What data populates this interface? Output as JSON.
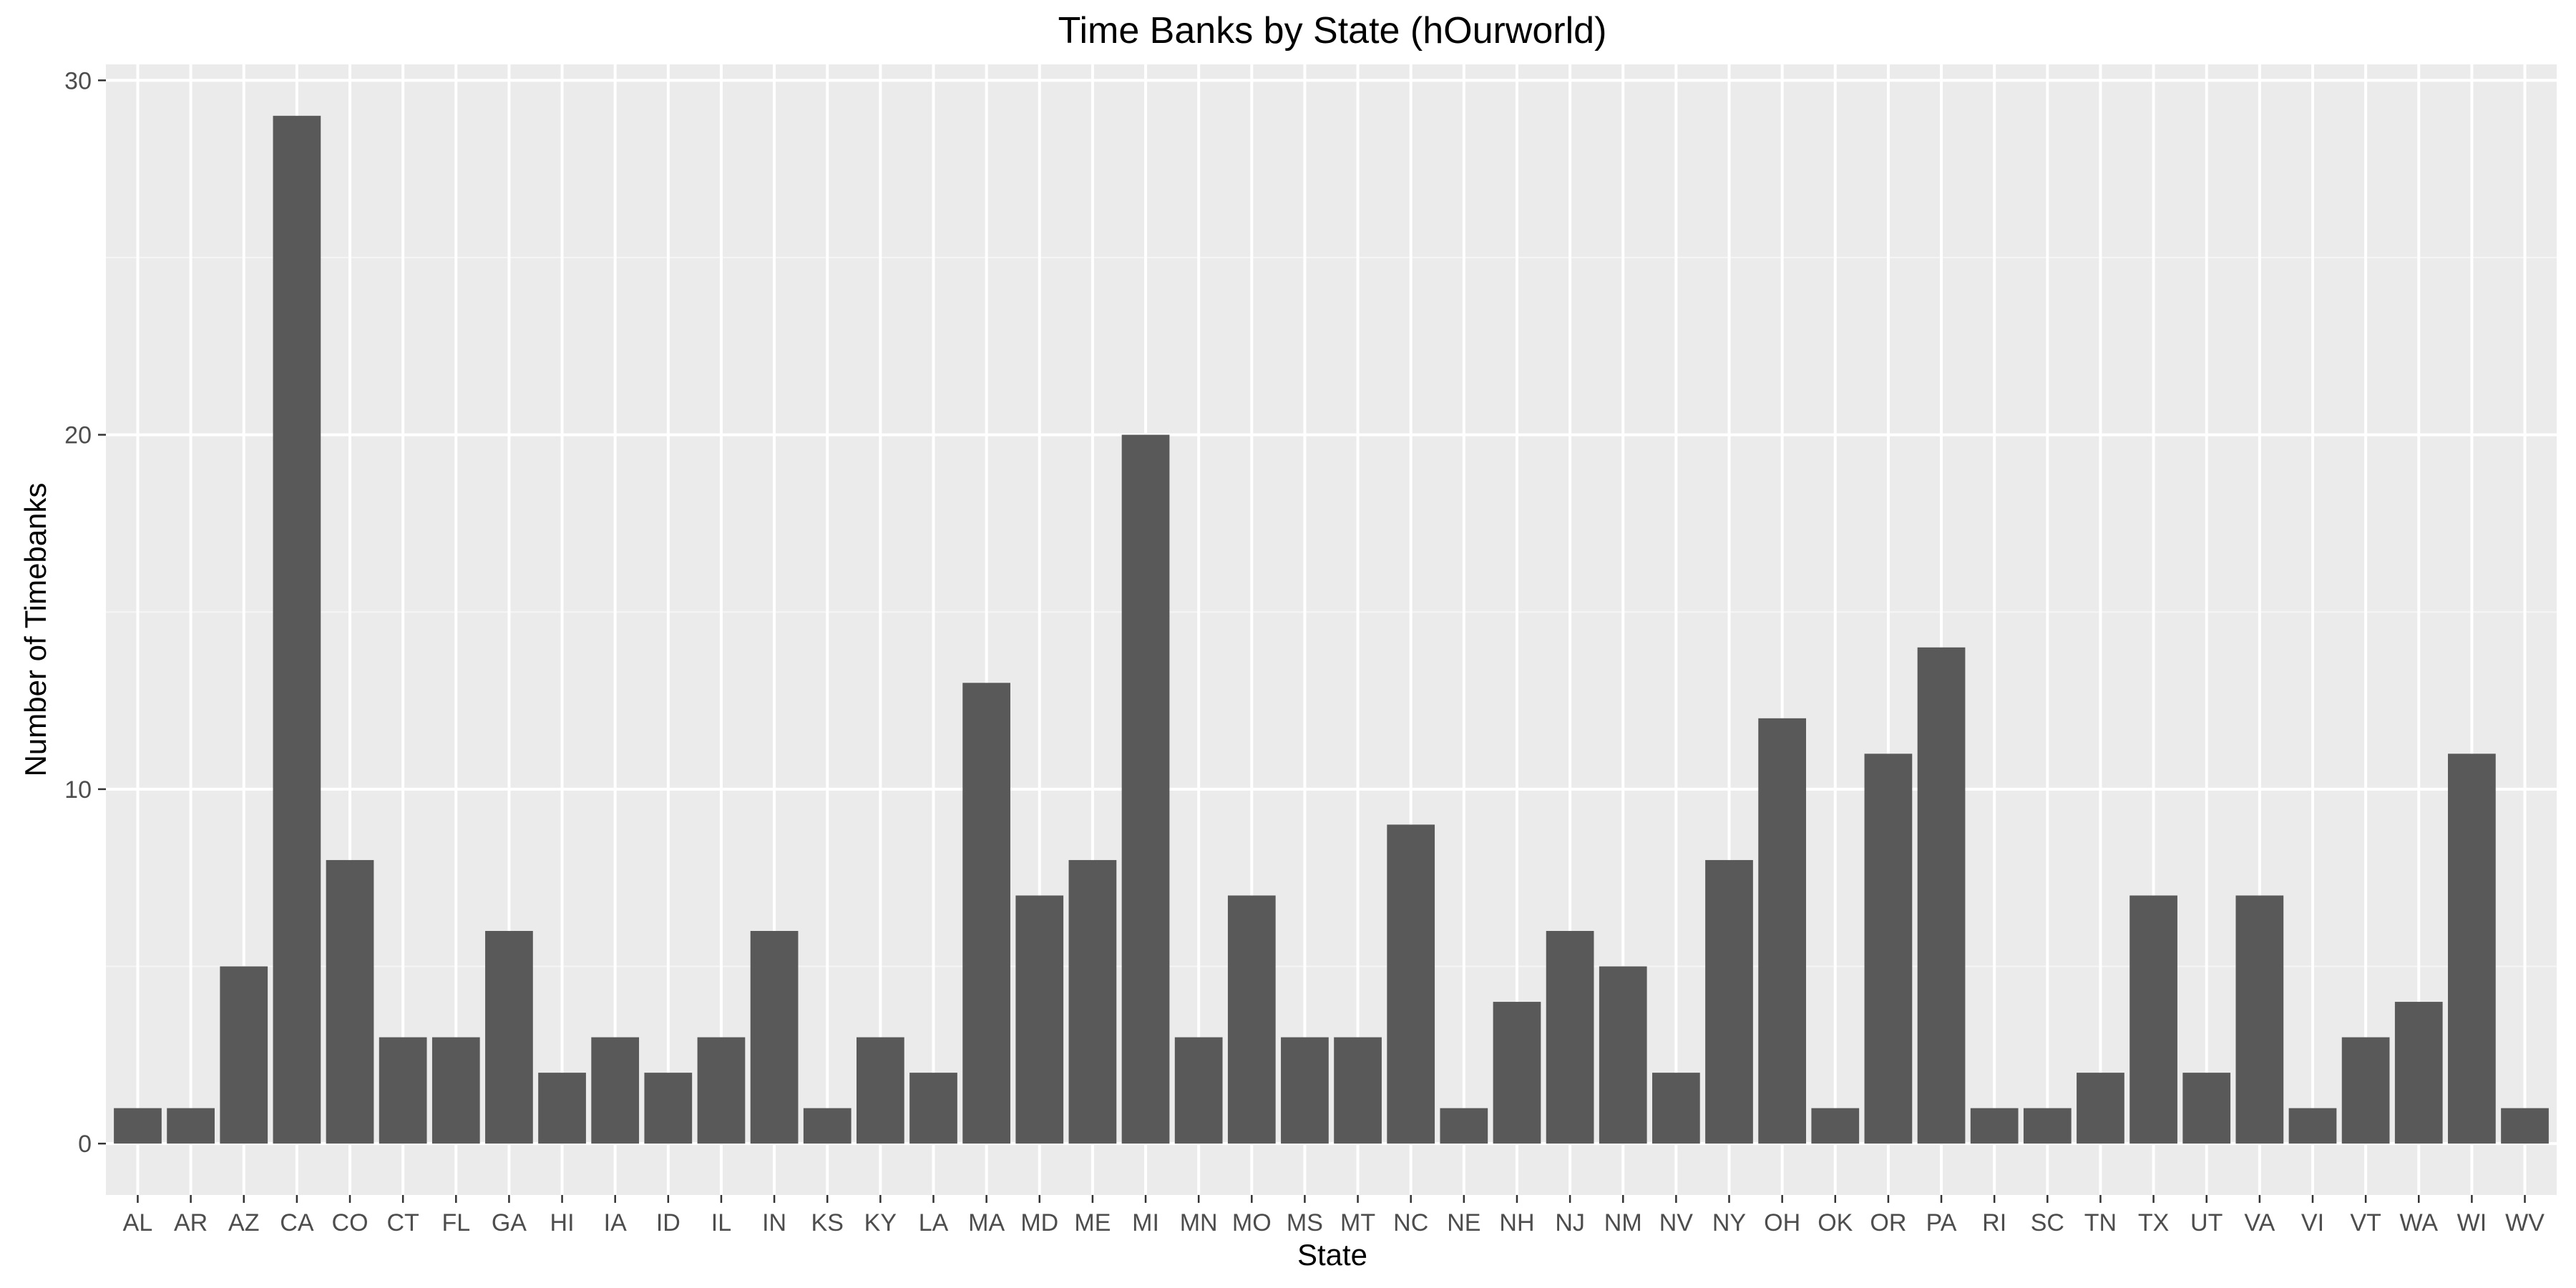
{
  "chart_data": {
    "type": "bar",
    "title": "Time Banks by State (hOurworld)",
    "xlabel": "State",
    "ylabel": "Number of Timebanks",
    "categories": [
      "AL",
      "AR",
      "AZ",
      "CA",
      "CO",
      "CT",
      "FL",
      "GA",
      "HI",
      "IA",
      "ID",
      "IL",
      "IN",
      "KS",
      "KY",
      "LA",
      "MA",
      "MD",
      "ME",
      "MI",
      "MN",
      "MO",
      "MS",
      "MT",
      "NC",
      "NE",
      "NH",
      "NJ",
      "NM",
      "NV",
      "NY",
      "OH",
      "OK",
      "OR",
      "PA",
      "RI",
      "SC",
      "TN",
      "TX",
      "UT",
      "VA",
      "VI",
      "VT",
      "WA",
      "WI",
      "WV"
    ],
    "values": [
      1,
      1,
      5,
      29,
      8,
      3,
      3,
      6,
      2,
      3,
      2,
      3,
      6,
      1,
      3,
      2,
      13,
      7,
      8,
      20,
      3,
      7,
      3,
      3,
      9,
      1,
      4,
      6,
      5,
      2,
      8,
      12,
      1,
      11,
      14,
      1,
      1,
      2,
      7,
      2,
      7,
      1,
      3,
      4,
      11,
      1
    ],
    "ylim": [
      -1.45,
      30.45
    ],
    "yticks": [
      0,
      10,
      20,
      30
    ],
    "grid": true,
    "legend": "none",
    "colors": {
      "bar": "#595959",
      "panel": "#ebebeb",
      "grid_major": "#ffffff",
      "grid_minor": "#f5f5f5",
      "tick": "#333333"
    }
  }
}
